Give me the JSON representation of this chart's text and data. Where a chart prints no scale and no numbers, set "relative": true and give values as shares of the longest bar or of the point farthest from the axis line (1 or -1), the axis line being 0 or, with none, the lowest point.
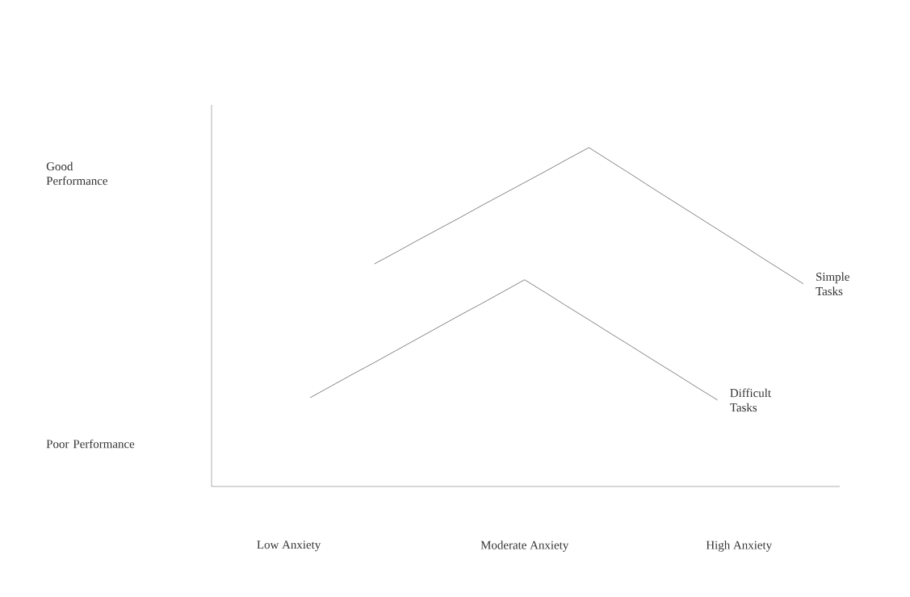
{
  "chart_data": {
    "type": "line",
    "relative": true,
    "categories": [
      "Low Anxiety",
      null,
      null,
      null,
      null,
      null,
      null,
      null,
      null,
      null,
      null,
      "Moderate Anxiety",
      null,
      null,
      null,
      null,
      null,
      null,
      null,
      null,
      null,
      "High Anxiety",
      null,
      null,
      null
    ],
    "series": [
      {
        "name": "Simple Tasks",
        "color": "#333333",
        "values": [
          null,
          null,
          null,
          null,
          0.657,
          0.691,
          0.726,
          0.76,
          0.794,
          0.829,
          0.863,
          0.897,
          0.931,
          0.966,
          1.0,
          0.96,
          0.92,
          0.879,
          0.839,
          0.799,
          0.759,
          0.719,
          0.678,
          0.638,
          0.598
        ]
      },
      {
        "name": "Difficult Tasks",
        "color": "#333333",
        "values": [
          null,
          0.262,
          0.297,
          0.332,
          0.366,
          0.401,
          0.436,
          0.471,
          0.506,
          0.54,
          0.575,
          0.61,
          0.571,
          0.531,
          0.492,
          0.452,
          0.413,
          0.373,
          0.334,
          0.294,
          0.255,
          null,
          null,
          null,
          null
        ]
      }
    ],
    "annotations": [
      "Good Performance",
      "Poor Performance"
    ]
  }
}
